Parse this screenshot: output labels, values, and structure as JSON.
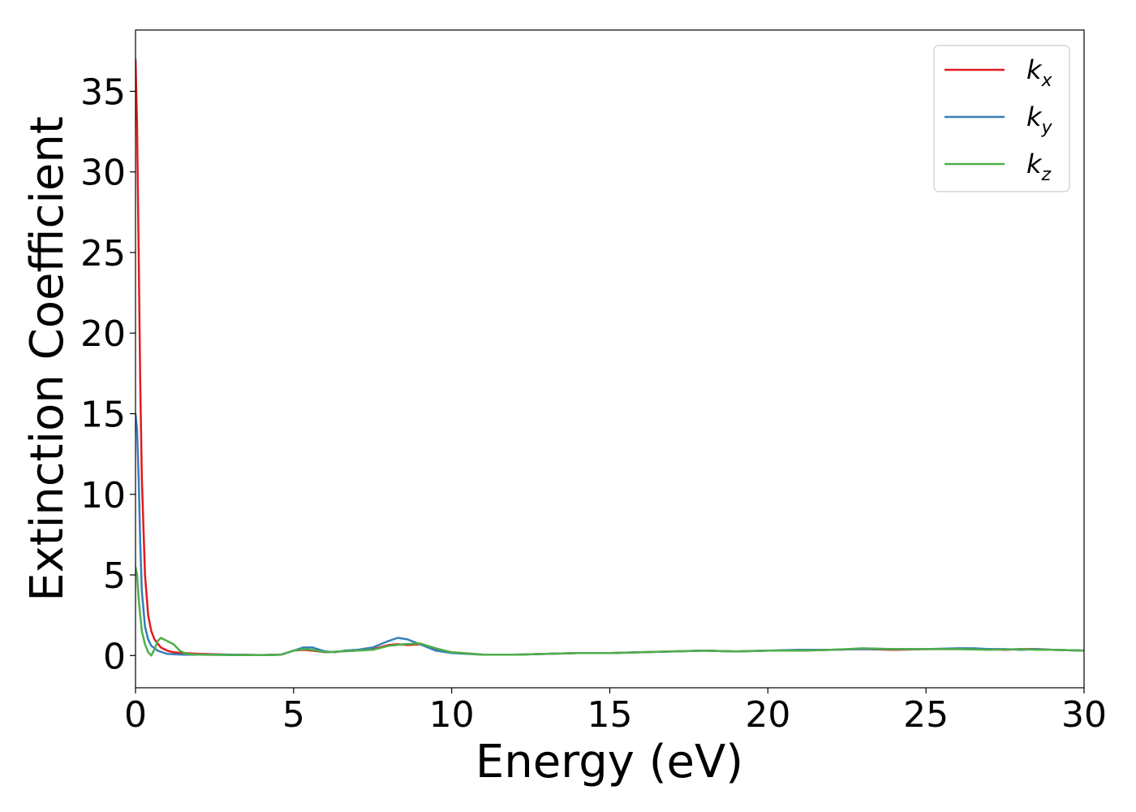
{
  "chart_data": {
    "type": "line",
    "xlabel": "Energy (eV)",
    "ylabel": "Extinction Coefficient",
    "xlim": [
      0,
      30
    ],
    "ylim": [
      -2,
      38.8
    ],
    "xticks": [
      0,
      5,
      10,
      15,
      20,
      25,
      30
    ],
    "yticks": [
      0,
      5,
      10,
      15,
      20,
      25,
      30,
      35
    ],
    "grid": false,
    "legend_position": "top-right",
    "series": [
      {
        "name": "k",
        "subscript": "x",
        "color": "#e41a1c",
        "x": [
          0,
          0.05,
          0.1,
          0.15,
          0.2,
          0.3,
          0.4,
          0.5,
          0.6,
          0.8,
          1.0,
          1.2,
          1.5,
          2,
          3,
          4,
          4.6,
          5.0,
          5.3,
          5.6,
          6.0,
          6.5,
          7.0,
          7.5,
          8.0,
          8.3,
          8.6,
          9.0,
          9.5,
          10,
          11,
          12,
          13,
          14,
          15,
          16,
          17,
          18,
          19,
          20,
          21,
          22,
          23,
          24,
          25,
          26,
          27,
          27.5,
          28,
          28.5,
          29,
          30
        ],
        "y": [
          37.0,
          33.0,
          25.0,
          17.0,
          11.0,
          5.0,
          2.5,
          1.5,
          1.0,
          0.5,
          0.3,
          0.2,
          0.15,
          0.1,
          0.05,
          0.03,
          0.05,
          0.3,
          0.35,
          0.3,
          0.2,
          0.25,
          0.3,
          0.4,
          0.65,
          0.7,
          0.65,
          0.7,
          0.4,
          0.2,
          0.05,
          0.05,
          0.1,
          0.15,
          0.15,
          0.2,
          0.25,
          0.3,
          0.25,
          0.3,
          0.3,
          0.35,
          0.4,
          0.35,
          0.4,
          0.4,
          0.4,
          0.35,
          0.4,
          0.4,
          0.35,
          0.3
        ]
      },
      {
        "name": "k",
        "subscript": "y",
        "color": "#377eb8",
        "x": [
          0,
          0.05,
          0.1,
          0.15,
          0.2,
          0.3,
          0.4,
          0.5,
          0.7,
          1.0,
          1.5,
          2,
          3,
          4,
          4.6,
          5.0,
          5.3,
          5.6,
          6.0,
          6.3,
          6.6,
          7.0,
          7.5,
          8.0,
          8.3,
          8.6,
          9.0,
          9.5,
          10,
          11,
          12,
          13,
          14,
          15,
          16,
          17,
          18,
          19,
          20,
          21,
          22,
          23,
          24,
          25,
          26,
          26.5,
          27,
          27.5,
          28,
          28.5,
          29,
          30
        ],
        "y": [
          15.0,
          14.0,
          11.0,
          7.0,
          4.0,
          1.8,
          1.0,
          0.6,
          0.3,
          0.1,
          0.05,
          0.05,
          0.05,
          0.03,
          0.05,
          0.3,
          0.5,
          0.5,
          0.25,
          0.2,
          0.3,
          0.35,
          0.5,
          0.9,
          1.1,
          1.0,
          0.7,
          0.3,
          0.15,
          0.05,
          0.05,
          0.1,
          0.15,
          0.15,
          0.2,
          0.25,
          0.3,
          0.25,
          0.3,
          0.35,
          0.35,
          0.4,
          0.4,
          0.4,
          0.45,
          0.45,
          0.4,
          0.4,
          0.35,
          0.4,
          0.35,
          0.3
        ]
      },
      {
        "name": "k",
        "subscript": "z",
        "color": "#4daf4a",
        "x": [
          0,
          0.05,
          0.1,
          0.2,
          0.3,
          0.4,
          0.5,
          0.6,
          0.7,
          0.8,
          1.0,
          1.2,
          1.4,
          1.6,
          2,
          3,
          4,
          4.6,
          5.0,
          5.3,
          5.6,
          6.0,
          6.5,
          7.0,
          7.5,
          8.0,
          8.5,
          9.0,
          9.5,
          10,
          11,
          12,
          13,
          14,
          15,
          16,
          17,
          18,
          19,
          20,
          21,
          22,
          22.5,
          23,
          24,
          25,
          26,
          27,
          28,
          28.5,
          29,
          30
        ],
        "y": [
          5.5,
          5.0,
          3.5,
          1.5,
          0.7,
          0.2,
          0.0,
          0.4,
          0.9,
          1.1,
          0.9,
          0.7,
          0.3,
          0.1,
          0.05,
          0.03,
          0.03,
          0.05,
          0.3,
          0.4,
          0.35,
          0.2,
          0.25,
          0.3,
          0.35,
          0.6,
          0.7,
          0.75,
          0.45,
          0.2,
          0.05,
          0.05,
          0.1,
          0.15,
          0.15,
          0.2,
          0.25,
          0.3,
          0.25,
          0.3,
          0.3,
          0.35,
          0.4,
          0.45,
          0.4,
          0.4,
          0.4,
          0.35,
          0.4,
          0.35,
          0.35,
          0.3
        ]
      }
    ]
  }
}
